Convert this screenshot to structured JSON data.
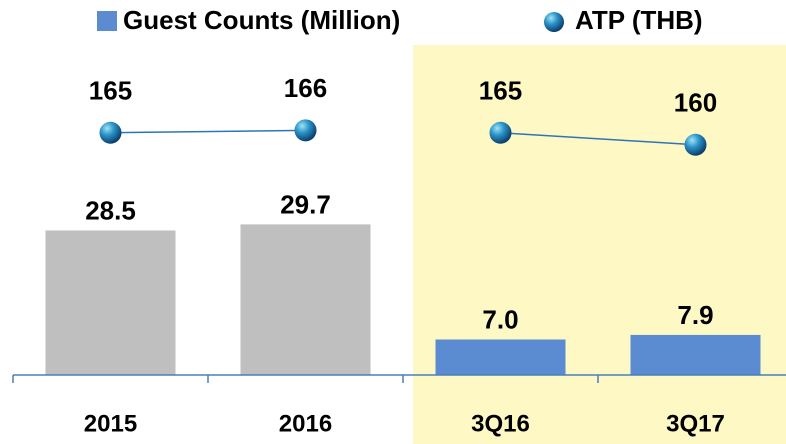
{
  "chart_data": {
    "type": "bar-line",
    "categories": [
      "2015",
      "2016",
      "3Q16",
      "3Q17"
    ],
    "series": [
      {
        "name": "Guest Counts (Million)",
        "color": "#5b8bd0",
        "colors": [
          "#bfbfbf",
          "#bfbfbf",
          "#5b8bd0",
          "#5b8bd0"
        ],
        "values": [
          28.5,
          29.7,
          7,
          7.9
        ],
        "value_labels": [
          "28.5",
          "29.7",
          "7.0",
          "7.9"
        ]
      },
      {
        "name": "ATP (THB)",
        "color": "#2e75b6",
        "axis": "y2",
        "values": [
          165,
          166,
          165,
          160
        ]
      }
    ],
    "ylim": [
      0,
      70
    ],
    "y2lim": [
      64,
      212
    ]
  }
}
